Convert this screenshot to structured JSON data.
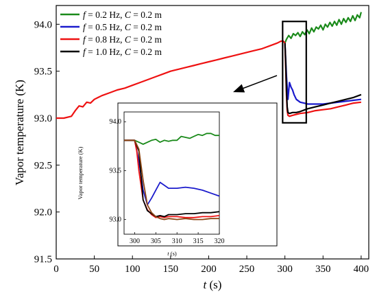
{
  "chart_data": [
    {
      "type": "line",
      "ylabel": "Vapor temperature (K)",
      "xlabel_var": "t",
      "xlabel_unit": " (s)",
      "xlim": [
        0,
        410
      ],
      "ylim": [
        91.5,
        94.2
      ],
      "xticks": [
        "0",
        "50",
        "100",
        "150",
        "200",
        "250",
        "300",
        "350",
        "400"
      ],
      "yticks": [
        "91.5",
        "92.0",
        "92.5",
        "93.0",
        "93.5",
        "94.0"
      ],
      "legend_position": "top-left",
      "grid": false,
      "series": [
        {
          "name": "f = 0.2 Hz, C = 0.2 m",
          "name_parts": [
            "f",
            " = 0.2 Hz, ",
            "C",
            " = 0.2 m"
          ],
          "color": "#1a8a1a",
          "x": [
            300,
            302,
            305,
            308,
            311,
            314,
            317,
            320,
            323,
            326,
            329,
            332,
            335,
            338,
            341,
            344,
            347,
            350,
            353,
            356,
            359,
            362,
            365,
            368,
            371,
            374,
            377,
            380,
            383,
            386,
            389,
            392,
            395,
            398,
            400
          ],
          "y": [
            93.8,
            93.84,
            93.88,
            93.85,
            93.9,
            93.88,
            93.91,
            93.87,
            93.92,
            93.89,
            93.94,
            93.9,
            93.96,
            93.92,
            93.97,
            93.95,
            93.99,
            93.94,
            94.0,
            93.97,
            94.02,
            93.98,
            94.03,
            93.99,
            94.05,
            94.0,
            94.06,
            94.02,
            94.07,
            94.03,
            94.09,
            94.04,
            94.1,
            94.07,
            94.13
          ]
        },
        {
          "name": "f = 0.5 Hz, C = 0.2 m",
          "name_parts": [
            "f",
            " = 0.5 Hz, ",
            "C",
            " = 0.2 m"
          ],
          "color": "#1a1acc",
          "x": [
            300,
            302,
            304,
            306,
            308,
            310,
            312,
            315,
            320,
            325,
            330,
            340,
            350,
            360,
            370,
            380,
            390,
            400
          ],
          "y": [
            93.8,
            93.45,
            93.2,
            93.38,
            93.33,
            93.3,
            93.25,
            93.2,
            93.17,
            93.16,
            93.15,
            93.15,
            93.15,
            93.16,
            93.17,
            93.18,
            93.19,
            93.2
          ]
        },
        {
          "name": "f = 0.8 Hz, C = 0.2 m",
          "name_parts": [
            "f",
            " = 0.8 Hz, ",
            "C",
            " = 0.2 m"
          ],
          "color": "#ee1111",
          "x": [
            0,
            10,
            20,
            25,
            30,
            35,
            40,
            45,
            50,
            55,
            60,
            70,
            80,
            90,
            100,
            110,
            120,
            130,
            140,
            150,
            160,
            170,
            180,
            190,
            200,
            210,
            220,
            230,
            240,
            250,
            260,
            270,
            280,
            290,
            295,
            298,
            300,
            301,
            302,
            303,
            304,
            306,
            310,
            315,
            320,
            330,
            340,
            350,
            360,
            370,
            380,
            390,
            400
          ],
          "y": [
            93.0,
            93.0,
            93.02,
            93.08,
            93.13,
            93.12,
            93.17,
            93.16,
            93.2,
            93.22,
            93.24,
            93.27,
            93.3,
            93.32,
            93.35,
            93.38,
            93.41,
            93.44,
            93.47,
            93.5,
            93.52,
            93.54,
            93.56,
            93.58,
            93.6,
            93.62,
            93.64,
            93.66,
            93.68,
            93.7,
            93.72,
            93.74,
            93.77,
            93.8,
            93.82,
            93.82,
            93.8,
            93.55,
            93.25,
            93.08,
            93.03,
            93.02,
            93.03,
            93.04,
            93.05,
            93.06,
            93.08,
            93.09,
            93.1,
            93.12,
            93.14,
            93.16,
            93.17
          ]
        },
        {
          "name": "f = 1.0 Hz, C = 0.2 m",
          "name_parts": [
            "f",
            " = 1.0 Hz, ",
            "C",
            " = 0.2 m"
          ],
          "color": "#000000",
          "x": [
            300,
            301,
            302,
            303,
            304,
            306,
            310,
            315,
            320,
            330,
            340,
            350,
            360,
            370,
            380,
            390,
            400
          ],
          "y": [
            93.8,
            93.6,
            93.3,
            93.12,
            93.06,
            93.05,
            93.06,
            93.06,
            93.07,
            93.1,
            93.12,
            93.14,
            93.16,
            93.18,
            93.2,
            93.22,
            93.25
          ]
        }
      ]
    },
    {
      "type": "line",
      "ylabel": "Vapor temperature (K)",
      "xlabel_var": "t",
      "xlabel_unit": " (s)",
      "xlim": [
        297.5,
        320
      ],
      "ylim": [
        92.85,
        94.1
      ],
      "xticks": [
        "300",
        "305",
        "310",
        "315",
        "320"
      ],
      "yticks": [
        "93.0",
        "93.5",
        "94.0"
      ],
      "series": [
        {
          "color": "#1a8a1a",
          "x": [
            297.5,
            300,
            301,
            302,
            304,
            305,
            306,
            307,
            308,
            309,
            310,
            311,
            312,
            313,
            314,
            315,
            316,
            317,
            318,
            319,
            320
          ],
          "y": [
            93.81,
            93.81,
            93.79,
            93.77,
            93.81,
            93.82,
            93.79,
            93.81,
            93.8,
            93.81,
            93.81,
            93.85,
            93.84,
            93.83,
            93.85,
            93.87,
            93.86,
            93.88,
            93.88,
            93.86,
            93.86
          ]
        },
        {
          "color": "#1a1acc",
          "x": [
            297.5,
            300,
            301,
            302,
            303,
            304,
            305,
            306,
            307,
            308,
            310,
            312,
            314,
            316,
            318,
            320
          ],
          "y": [
            93.81,
            93.81,
            93.6,
            93.3,
            93.15,
            93.22,
            93.3,
            93.38,
            93.35,
            93.32,
            93.32,
            93.33,
            93.32,
            93.3,
            93.27,
            93.24
          ]
        },
        {
          "color": "#ee1111",
          "x": [
            297.5,
            300,
            300.5,
            301,
            302,
            303,
            304,
            305,
            306,
            307,
            308,
            310,
            312,
            314,
            316,
            318,
            320
          ],
          "y": [
            93.81,
            93.81,
            93.7,
            93.5,
            93.2,
            93.1,
            93.05,
            93.02,
            93.03,
            93.02,
            93.03,
            93.03,
            93.02,
            93.02,
            93.03,
            93.03,
            93.04
          ]
        },
        {
          "color": "#000000",
          "x": [
            297.5,
            300,
            301,
            301.5,
            302,
            303,
            304,
            305,
            306,
            307,
            308,
            310,
            312,
            314,
            316,
            318,
            320
          ],
          "y": [
            93.81,
            93.81,
            93.7,
            93.45,
            93.2,
            93.09,
            93.06,
            93.03,
            93.04,
            93.03,
            93.05,
            93.05,
            93.06,
            93.06,
            93.07,
            93.07,
            93.08
          ]
        },
        {
          "color": "#8b4513",
          "x": [
            297.5,
            300,
            301,
            302,
            303,
            304,
            305,
            306,
            307,
            308,
            310,
            312,
            314,
            316,
            318,
            320
          ],
          "y": [
            93.81,
            93.81,
            93.72,
            93.4,
            93.15,
            93.07,
            93.03,
            93.01,
            93.0,
            93.01,
            93.0,
            93.01,
            93.0,
            93.0,
            93.01,
            93.01
          ]
        }
      ]
    }
  ]
}
